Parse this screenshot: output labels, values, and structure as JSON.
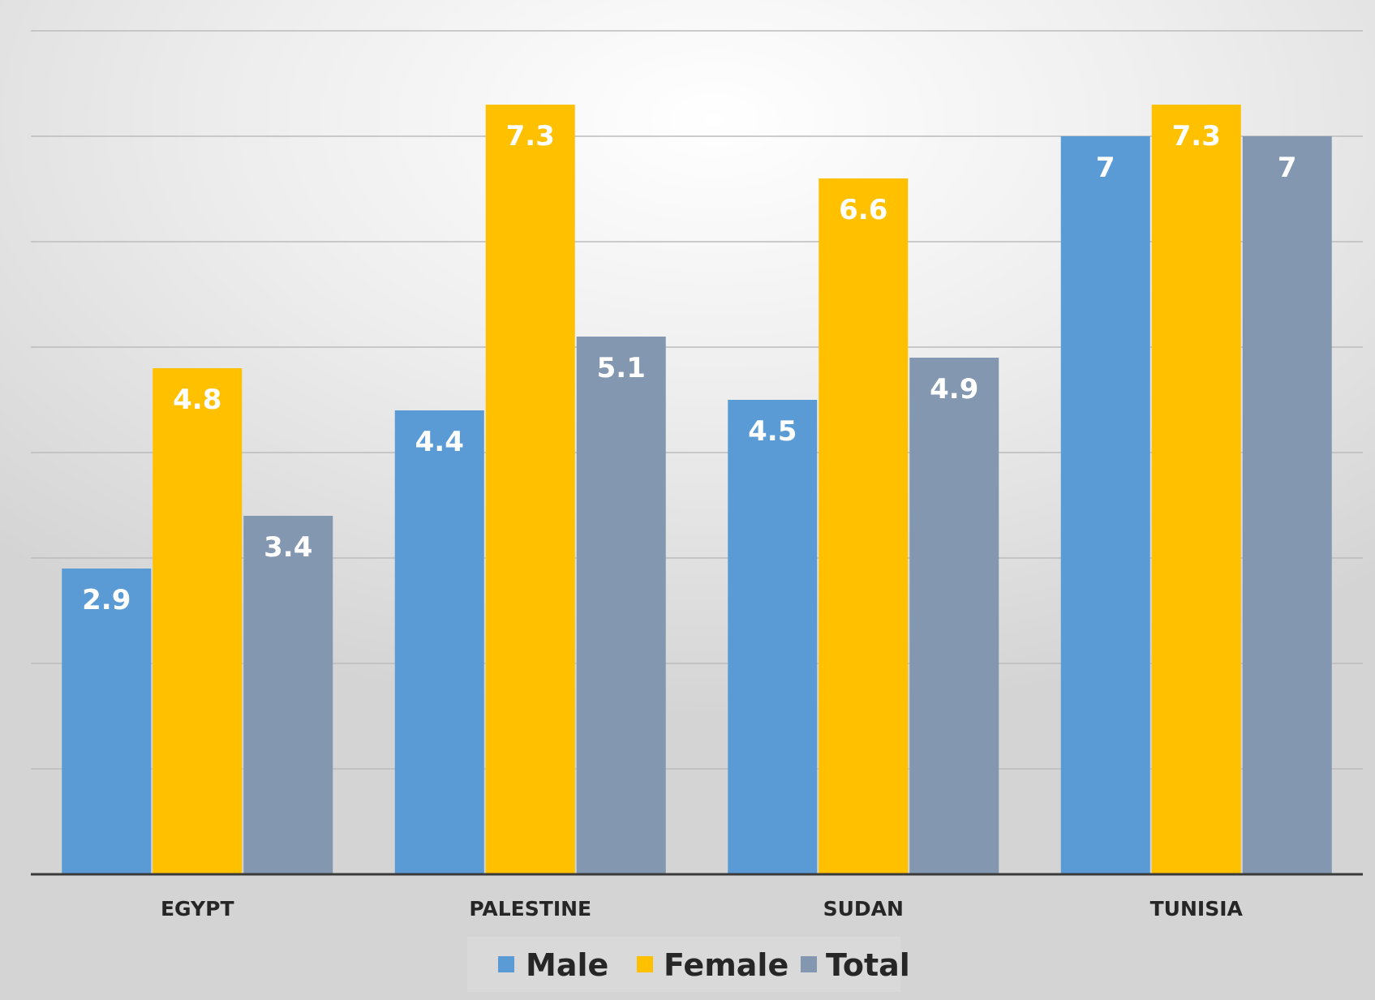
{
  "chart_data": {
    "type": "bar",
    "title": "",
    "xlabel": "",
    "ylabel": "",
    "ylim": [
      0,
      8
    ],
    "grid": true,
    "legend_position": "bottom",
    "categories": [
      "EGYPT",
      "PALESTINE",
      "SUDAN",
      "TUNISIA"
    ],
    "series": [
      {
        "name": "Male",
        "values": [
          2.9,
          4.4,
          4.5,
          7
        ],
        "labels": [
          "2.9",
          "4.4",
          "4.5",
          "7"
        ],
        "color": "#5b9bd5"
      },
      {
        "name": "Female",
        "values": [
          4.8,
          7.3,
          6.6,
          7.3
        ],
        "labels": [
          "4.8",
          "7.3",
          "6.6",
          "7.3"
        ],
        "color": "#ffc000"
      },
      {
        "name": "Total",
        "values": [
          3.4,
          5.1,
          4.9,
          7
        ],
        "labels": [
          "3.4",
          "5.1",
          "4.9",
          "7"
        ],
        "color": "#8497b0"
      }
    ],
    "colors": {
      "axis": "#3a3a3a",
      "gridline": "#bcbcbc",
      "label_text": "#ffffff",
      "category_text": "#262626",
      "legend_background": "#d9d9d9"
    }
  }
}
